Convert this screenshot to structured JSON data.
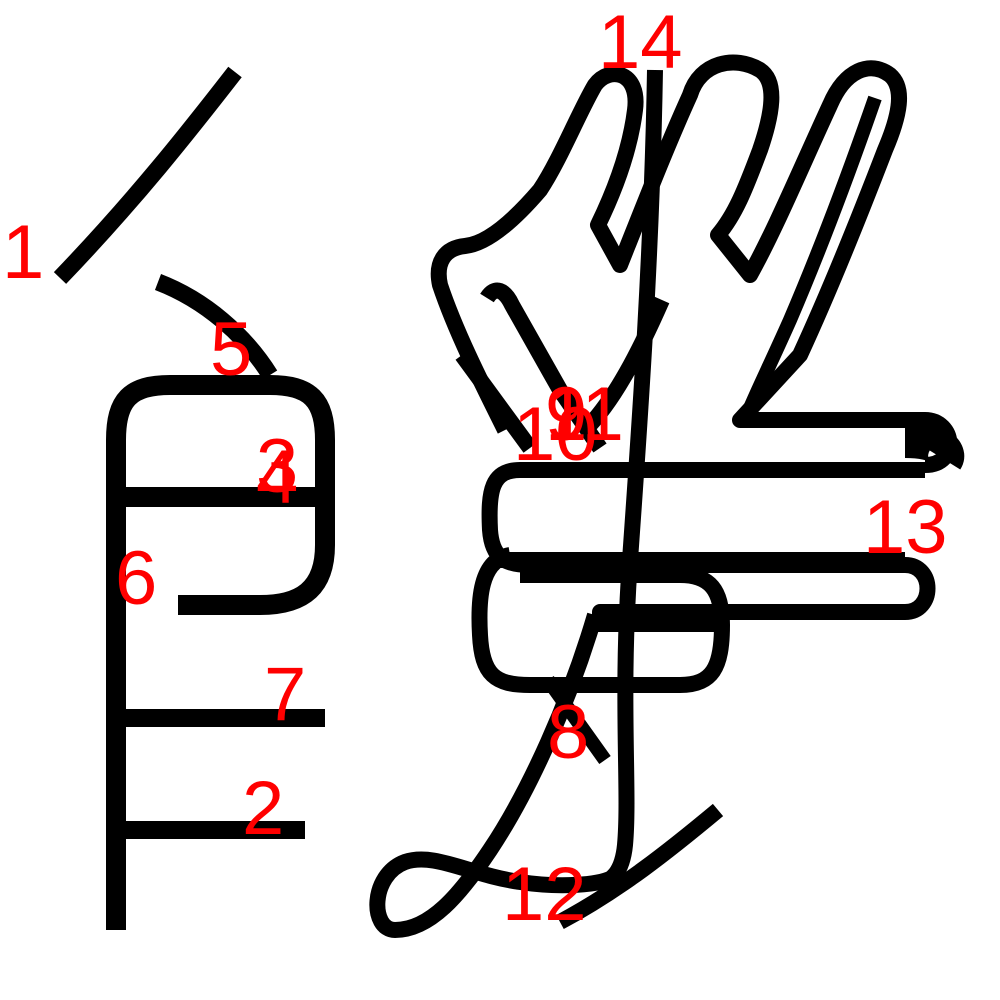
{
  "diagram": {
    "stroke_color": "#000000",
    "number_color": "#ff0000",
    "background": "#ffffff",
    "stroke_numbers": [
      "1",
      "2",
      "3",
      "4",
      "5",
      "6",
      "7",
      "8",
      "9",
      "10",
      "11",
      "12",
      "13",
      "14"
    ]
  }
}
